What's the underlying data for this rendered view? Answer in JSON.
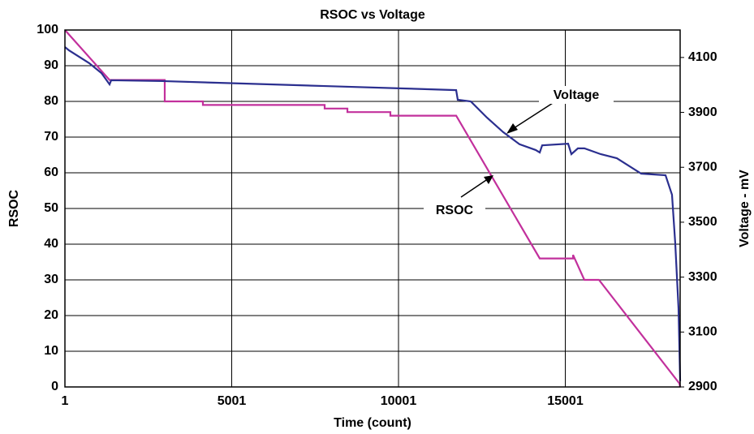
{
  "chart_data": {
    "type": "line",
    "title": "RSOC vs Voltage",
    "x_label": "Time (count)",
    "y_label": "RSOC",
    "y2_label": "Voltage - mV",
    "xlim": [
      1,
      18444
    ],
    "xticks": [
      1,
      5001,
      10001,
      15001
    ],
    "ylim": [
      0,
      100
    ],
    "yticks": [
      0,
      10,
      20,
      30,
      40,
      50,
      60,
      70,
      80,
      90,
      100
    ],
    "y2lim": [
      2900,
      4200
    ],
    "y2ticks": [
      2900,
      3100,
      3300,
      3500,
      3700,
      3900,
      4100
    ],
    "grid": true,
    "series": [
      {
        "name": "RSOC",
        "color": "#c2309c",
        "x": [
          1,
          1339,
          2993,
          2993,
          4137,
          4137,
          7787,
          7787,
          8469,
          8469,
          9757,
          9757,
          11730,
          14235,
          15233,
          15233,
          15572,
          16010,
          18420,
          18444
        ],
        "values": [
          100,
          86,
          86,
          80,
          80,
          79,
          79,
          78,
          78,
          77,
          77,
          76,
          76,
          36,
          36,
          37,
          30,
          30,
          1,
          0
        ]
      },
      {
        "name": "Voltage",
        "color": "#2b2f8f",
        "axis": "y2",
        "x": [
          1,
          123,
          731,
          1096,
          1339,
          1388,
          2921,
          5354,
          7787,
          10220,
          11729,
          11777,
          12167,
          12653,
          13140,
          13627,
          14113,
          14235,
          14308,
          15086,
          15184,
          15378,
          15573,
          16060,
          16546,
          17276,
          18006,
          18200,
          18297,
          18395,
          18444
        ],
        "values": [
          4138,
          4126,
          4079,
          4043,
          4002,
          4017,
          4014,
          4005,
          3996,
          3987,
          3981,
          3946,
          3940,
          3881,
          3828,
          3784,
          3763,
          3754,
          3780,
          3786,
          3748,
          3769,
          3769,
          3748,
          3733,
          3677,
          3671,
          3600,
          3423,
          3187,
          2921
        ]
      }
    ],
    "annotations": [
      "Voltage",
      "RSOC"
    ]
  }
}
